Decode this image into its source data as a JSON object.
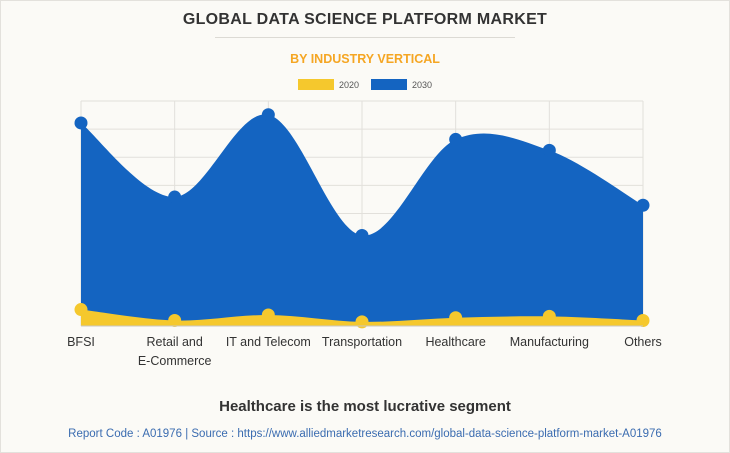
{
  "colors": {
    "series_2020": "#f5c82d",
    "series_2030": "#1464c1",
    "subtitle": "#f5a623",
    "footer": "#3b6cb0",
    "grid": "#e2e0db",
    "text": "#333333"
  },
  "chart_data": {
    "type": "area",
    "title": "GLOBAL DATA SCIENCE PLATFORM MARKET",
    "subtitle": "BY INDUSTRY VERTICAL",
    "categories": [
      "BFSI",
      "Retail and\nE-Commerce",
      "IT and Telecom",
      "Transportation",
      "Healthcare",
      "Manufacturing",
      "Others"
    ],
    "series": [
      {
        "name": "2030",
        "values": [
          74,
          47,
          77,
          33,
          68,
          64,
          44
        ]
      },
      {
        "name": "2020",
        "values": [
          6,
          2,
          4,
          1.5,
          3,
          3.5,
          2
        ]
      }
    ],
    "ylim": [
      0,
      82
    ],
    "grid": true,
    "y_tick_labels_shown": false,
    "legend_position": "top-center"
  },
  "caption": "Healthcare is the most lucrative segment",
  "footer": {
    "report_code": "Report Code : A01976",
    "separator": "|",
    "source": "Source : https://www.alliedmarketresearch.com/global-data-science-platform-market-A01976"
  }
}
